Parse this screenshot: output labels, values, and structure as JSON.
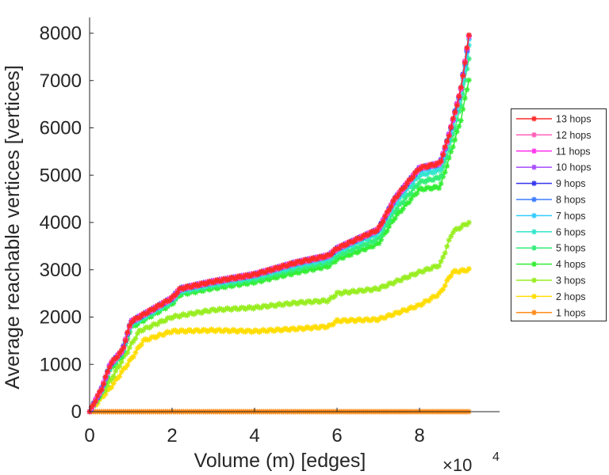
{
  "chart_data": {
    "type": "line",
    "title": "",
    "xlabel": "Volume (m) [edges]",
    "ylabel": "Average reachable vertices [vertices]",
    "x_multiplier_label": "×10",
    "x_multiplier_exponent": "4",
    "xlim": [
      0,
      9.8
    ],
    "ylim": [
      0,
      8300
    ],
    "x_ticks": [
      0,
      2,
      4,
      6,
      8
    ],
    "x_tick_labels": [
      "0",
      "2",
      "4",
      "6",
      "8"
    ],
    "y_ticks": [
      0,
      1000,
      2000,
      3000,
      4000,
      5000,
      6000,
      7000,
      8000
    ],
    "y_tick_labels": [
      "0",
      "1000",
      "2000",
      "3000",
      "4000",
      "5000",
      "6000",
      "7000",
      "8000"
    ],
    "x_units": "edges ×10^4",
    "grid": false,
    "legend_position": "outside-right",
    "marker": "asterisk",
    "series": [
      {
        "name": "13 hops",
        "color": "#ff2a2a",
        "x": [
          0,
          0.3,
          0.5,
          0.8,
          1.0,
          1.5,
          2.0,
          2.2,
          3.0,
          4.0,
          5.0,
          5.8,
          6.0,
          7.0,
          7.4,
          8.0,
          8.5,
          8.7,
          9.0,
          9.2
        ],
        "y": [
          0,
          500,
          1000,
          1300,
          1900,
          2150,
          2400,
          2600,
          2750,
          2900,
          3150,
          3300,
          3450,
          3850,
          4500,
          5150,
          5250,
          5800,
          6800,
          7950
        ]
      },
      {
        "name": "12 hops",
        "color": "#ff5cb8",
        "x": [
          0,
          0.3,
          0.5,
          0.8,
          1.0,
          1.5,
          2.0,
          2.2,
          3.0,
          4.0,
          5.0,
          5.8,
          6.0,
          7.0,
          7.4,
          8.0,
          8.5,
          8.7,
          9.0,
          9.2
        ],
        "y": [
          0,
          500,
          1000,
          1300,
          1900,
          2150,
          2400,
          2600,
          2750,
          2900,
          3150,
          3300,
          3450,
          3850,
          4500,
          5150,
          5250,
          5800,
          6800,
          7950
        ]
      },
      {
        "name": "11 hops",
        "color": "#ff33ee",
        "x": [
          0,
          0.3,
          0.5,
          0.8,
          1.0,
          1.5,
          2.0,
          2.2,
          3.0,
          4.0,
          5.0,
          5.8,
          6.0,
          7.0,
          7.4,
          8.0,
          8.5,
          8.7,
          9.0,
          9.2
        ],
        "y": [
          0,
          500,
          1000,
          1300,
          1900,
          2150,
          2400,
          2600,
          2750,
          2900,
          3150,
          3300,
          3450,
          3850,
          4500,
          5150,
          5250,
          5800,
          6800,
          7950
        ]
      },
      {
        "name": "10 hops",
        "color": "#a64dff",
        "x": [
          0,
          0.3,
          0.5,
          0.8,
          1.0,
          1.5,
          2.0,
          2.2,
          3.0,
          4.0,
          5.0,
          5.8,
          6.0,
          7.0,
          7.4,
          8.0,
          8.5,
          8.7,
          9.0,
          9.2
        ],
        "y": [
          0,
          500,
          1000,
          1300,
          1900,
          2150,
          2400,
          2600,
          2750,
          2900,
          3150,
          3300,
          3450,
          3850,
          4500,
          5150,
          5250,
          5800,
          6800,
          7950
        ]
      },
      {
        "name": "9 hops",
        "color": "#3333ee",
        "x": [
          0,
          0.3,
          0.5,
          0.8,
          1.0,
          1.5,
          2.0,
          2.2,
          3.0,
          4.0,
          5.0,
          5.8,
          6.0,
          7.0,
          7.4,
          8.0,
          8.5,
          8.7,
          9.0,
          9.2
        ],
        "y": [
          0,
          500,
          1000,
          1300,
          1900,
          2150,
          2400,
          2600,
          2750,
          2900,
          3150,
          3300,
          3450,
          3850,
          4500,
          5150,
          5250,
          5800,
          6800,
          7950
        ]
      },
      {
        "name": "8 hops",
        "color": "#3d7dff",
        "x": [
          0,
          0.3,
          0.5,
          0.8,
          1.0,
          1.5,
          2.0,
          2.2,
          3.0,
          4.0,
          5.0,
          5.8,
          6.0,
          7.0,
          7.4,
          8.0,
          8.5,
          8.7,
          9.0,
          9.2
        ],
        "y": [
          0,
          500,
          1000,
          1300,
          1900,
          2150,
          2400,
          2600,
          2750,
          2900,
          3150,
          3300,
          3450,
          3850,
          4500,
          5150,
          5250,
          5800,
          6800,
          7900
        ]
      },
      {
        "name": "7 hops",
        "color": "#33ccff",
        "x": [
          0,
          0.3,
          0.5,
          0.8,
          1.0,
          1.5,
          2.0,
          2.2,
          3.0,
          4.0,
          5.0,
          5.8,
          6.0,
          7.0,
          7.4,
          8.0,
          8.5,
          8.7,
          9.0,
          9.2
        ],
        "y": [
          0,
          480,
          980,
          1280,
          1880,
          2130,
          2380,
          2580,
          2730,
          2880,
          3120,
          3270,
          3420,
          3820,
          4450,
          5100,
          5200,
          5750,
          6750,
          7850
        ]
      },
      {
        "name": "6 hops",
        "color": "#33e6cc",
        "x": [
          0,
          0.3,
          0.5,
          0.8,
          1.0,
          1.5,
          2.0,
          2.2,
          3.0,
          4.0,
          5.0,
          5.8,
          6.0,
          7.0,
          7.4,
          8.0,
          8.5,
          8.7,
          9.0,
          9.2
        ],
        "y": [
          0,
          470,
          960,
          1260,
          1850,
          2100,
          2350,
          2550,
          2700,
          2850,
          3080,
          3230,
          3380,
          3760,
          4380,
          5000,
          5100,
          5650,
          6650,
          7750
        ]
      },
      {
        "name": "5 hops",
        "color": "#33ee77",
        "x": [
          0,
          0.3,
          0.5,
          0.8,
          1.0,
          1.5,
          2.0,
          2.2,
          3.0,
          4.0,
          5.0,
          5.8,
          6.0,
          7.0,
          7.4,
          8.0,
          8.5,
          8.7,
          9.0,
          9.2
        ],
        "y": [
          0,
          450,
          930,
          1230,
          1820,
          2070,
          2320,
          2520,
          2660,
          2800,
          3020,
          3160,
          3300,
          3650,
          4250,
          4850,
          4950,
          5500,
          6450,
          7480
        ]
      },
      {
        "name": "4 hops",
        "color": "#33ee33",
        "x": [
          0,
          0.3,
          0.5,
          0.8,
          1.0,
          1.5,
          2.0,
          2.2,
          3.0,
          4.0,
          5.0,
          5.8,
          6.0,
          7.0,
          7.4,
          8.0,
          8.5,
          8.7,
          9.0,
          9.2
        ],
        "y": [
          0,
          430,
          900,
          1200,
          1780,
          2030,
          2280,
          2480,
          2610,
          2740,
          2940,
          3080,
          3220,
          3550,
          4100,
          4700,
          4750,
          5300,
          6150,
          7030
        ]
      },
      {
        "name": "3 hops",
        "color": "#99ee22",
        "x": [
          0,
          0.4,
          0.8,
          1.2,
          2.0,
          3.0,
          4.0,
          5.0,
          5.8,
          6.0,
          7.0,
          8.0,
          8.5,
          8.8,
          9.2
        ],
        "y": [
          0,
          500,
          1100,
          1700,
          2000,
          2150,
          2200,
          2300,
          2350,
          2500,
          2600,
          2950,
          3100,
          3800,
          4000
        ]
      },
      {
        "name": "2 hops",
        "color": "#ffdd00",
        "x": [
          0,
          0.5,
          1.0,
          1.3,
          2.0,
          3.0,
          4.0,
          5.0,
          5.8,
          6.0,
          7.0,
          8.0,
          8.5,
          8.8,
          9.2
        ],
        "y": [
          0,
          500,
          1100,
          1500,
          1700,
          1720,
          1700,
          1750,
          1800,
          1920,
          1950,
          2250,
          2500,
          2950,
          3000
        ]
      },
      {
        "name": "1 hops",
        "color": "#ff8c1a",
        "x": [
          0,
          9.2
        ],
        "y": [
          0,
          0
        ]
      }
    ]
  }
}
